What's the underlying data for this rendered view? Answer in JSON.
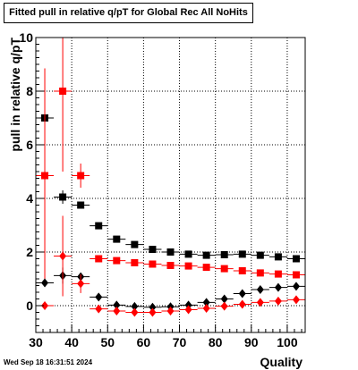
{
  "title": "Fitted pull in relative q/pT for Global Rec All NoHits",
  "timestamp": "Wed Sep 18 16:31:51 2024",
  "chart_data": {
    "type": "scatter",
    "title": "Fitted pull in relative q/pT for Global Rec All NoHits",
    "xlabel": "Quality",
    "ylabel": "pull in relative q/pT",
    "xlim": [
      30,
      105
    ],
    "ylim": [
      -1,
      10
    ],
    "x_ticks": [
      30,
      40,
      50,
      60,
      70,
      80,
      90,
      100
    ],
    "y_ticks": [
      0,
      2,
      4,
      6,
      8,
      10
    ],
    "grid": true,
    "series": [
      {
        "color": "#000000",
        "marker": "square",
        "x": [
          32.5,
          37.5,
          42.5,
          47.5,
          52.5,
          57.5,
          62.5,
          67.5,
          72.5,
          77.5,
          82.5,
          87.5,
          92.5,
          97.5,
          102.5
        ],
        "y": [
          7.0,
          4.05,
          3.75,
          2.98,
          2.48,
          2.28,
          2.1,
          2.0,
          1.92,
          1.88,
          1.9,
          1.92,
          1.88,
          1.82,
          1.75
        ],
        "yerr": [
          0.0,
          0.25,
          0.1,
          0.06,
          0.05,
          0.05,
          0.04,
          0.04,
          0.04,
          0.04,
          0.04,
          0.04,
          0.04,
          0.04,
          0.05
        ]
      },
      {
        "color": "#ff0000",
        "marker": "square",
        "x": [
          32.5,
          37.5,
          42.5,
          47.5,
          52.5,
          57.5,
          62.5,
          67.5,
          72.5,
          77.5,
          82.5,
          87.5,
          92.5,
          97.5,
          102.5
        ],
        "y": [
          4.85,
          8.0,
          4.85,
          1.75,
          1.68,
          1.6,
          1.55,
          1.5,
          1.48,
          1.43,
          1.38,
          1.3,
          1.22,
          1.18,
          1.15
        ],
        "yerr": [
          4.0,
          3.0,
          0.45,
          0.08,
          0.05,
          0.05,
          0.05,
          0.04,
          0.04,
          0.04,
          0.04,
          0.04,
          0.04,
          0.04,
          0.05
        ]
      },
      {
        "color": "#000000",
        "marker": "diamond",
        "x": [
          32.5,
          37.5,
          42.5,
          47.5,
          52.5,
          57.5,
          62.5,
          67.5,
          72.5,
          77.5,
          82.5,
          87.5,
          92.5,
          97.5,
          102.5
        ],
        "y": [
          0.85,
          1.12,
          1.08,
          0.32,
          0.02,
          -0.03,
          -0.06,
          -0.04,
          0.02,
          0.12,
          0.25,
          0.45,
          0.6,
          0.68,
          0.72
        ],
        "yerr": [
          0.0,
          0.3,
          0.12,
          0.05,
          0.03,
          0.03,
          0.03,
          0.03,
          0.03,
          0.03,
          0.03,
          0.03,
          0.03,
          0.03,
          0.04
        ]
      },
      {
        "color": "#ff0000",
        "marker": "diamond",
        "x": [
          32.5,
          37.5,
          42.5,
          47.5,
          52.5,
          57.5,
          62.5,
          67.5,
          72.5,
          77.5,
          82.5,
          87.5,
          92.5,
          97.5,
          102.5
        ],
        "y": [
          0.0,
          1.85,
          0.82,
          -0.12,
          -0.2,
          -0.25,
          -0.25,
          -0.2,
          -0.15,
          -0.1,
          -0.02,
          0.05,
          0.12,
          0.17,
          0.22
        ],
        "yerr": [
          0.0,
          1.5,
          0.35,
          0.06,
          0.04,
          0.04,
          0.04,
          0.03,
          0.03,
          0.03,
          0.03,
          0.03,
          0.03,
          0.03,
          0.04
        ]
      }
    ]
  }
}
